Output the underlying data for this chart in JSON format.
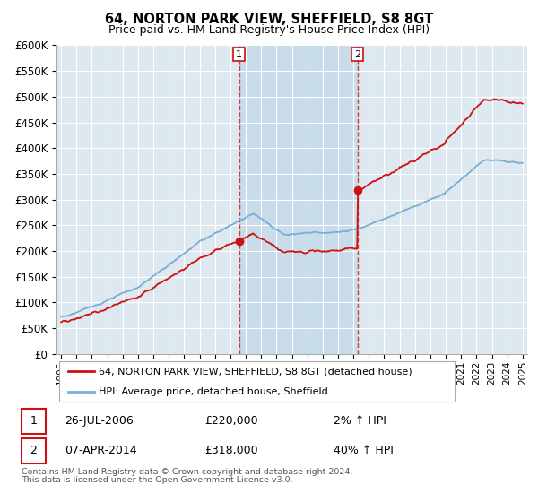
{
  "title1": "64, NORTON PARK VIEW, SHEFFIELD, S8 8GT",
  "title2": "Price paid vs. HM Land Registry's House Price Index (HPI)",
  "legend_line1": "64, NORTON PARK VIEW, SHEFFIELD, S8 8GT (detached house)",
  "legend_line2": "HPI: Average price, detached house, Sheffield",
  "transaction1_date": "26-JUL-2006",
  "transaction1_price": "£220,000",
  "transaction1_hpi": "2% ↑ HPI",
  "transaction2_date": "07-APR-2014",
  "transaction2_price": "£318,000",
  "transaction2_hpi": "40% ↑ HPI",
  "footer": "Contains HM Land Registry data © Crown copyright and database right 2024.\nThis data is licensed under the Open Government Licence v3.0.",
  "hpi_color": "#7aadd4",
  "price_color": "#cc1111",
  "marker_color": "#cc1111",
  "chart_bg": "#dde8f0",
  "highlight_bg": "#c8dcea",
  "grid_color": "#ffffff",
  "ylim": [
    0,
    600000
  ],
  "yticks": [
    0,
    50000,
    100000,
    150000,
    200000,
    250000,
    300000,
    350000,
    400000,
    450000,
    500000,
    550000,
    600000
  ],
  "transaction1_year": 2006.57,
  "transaction2_year": 2014.27,
  "price1": 220000,
  "price2": 318000
}
